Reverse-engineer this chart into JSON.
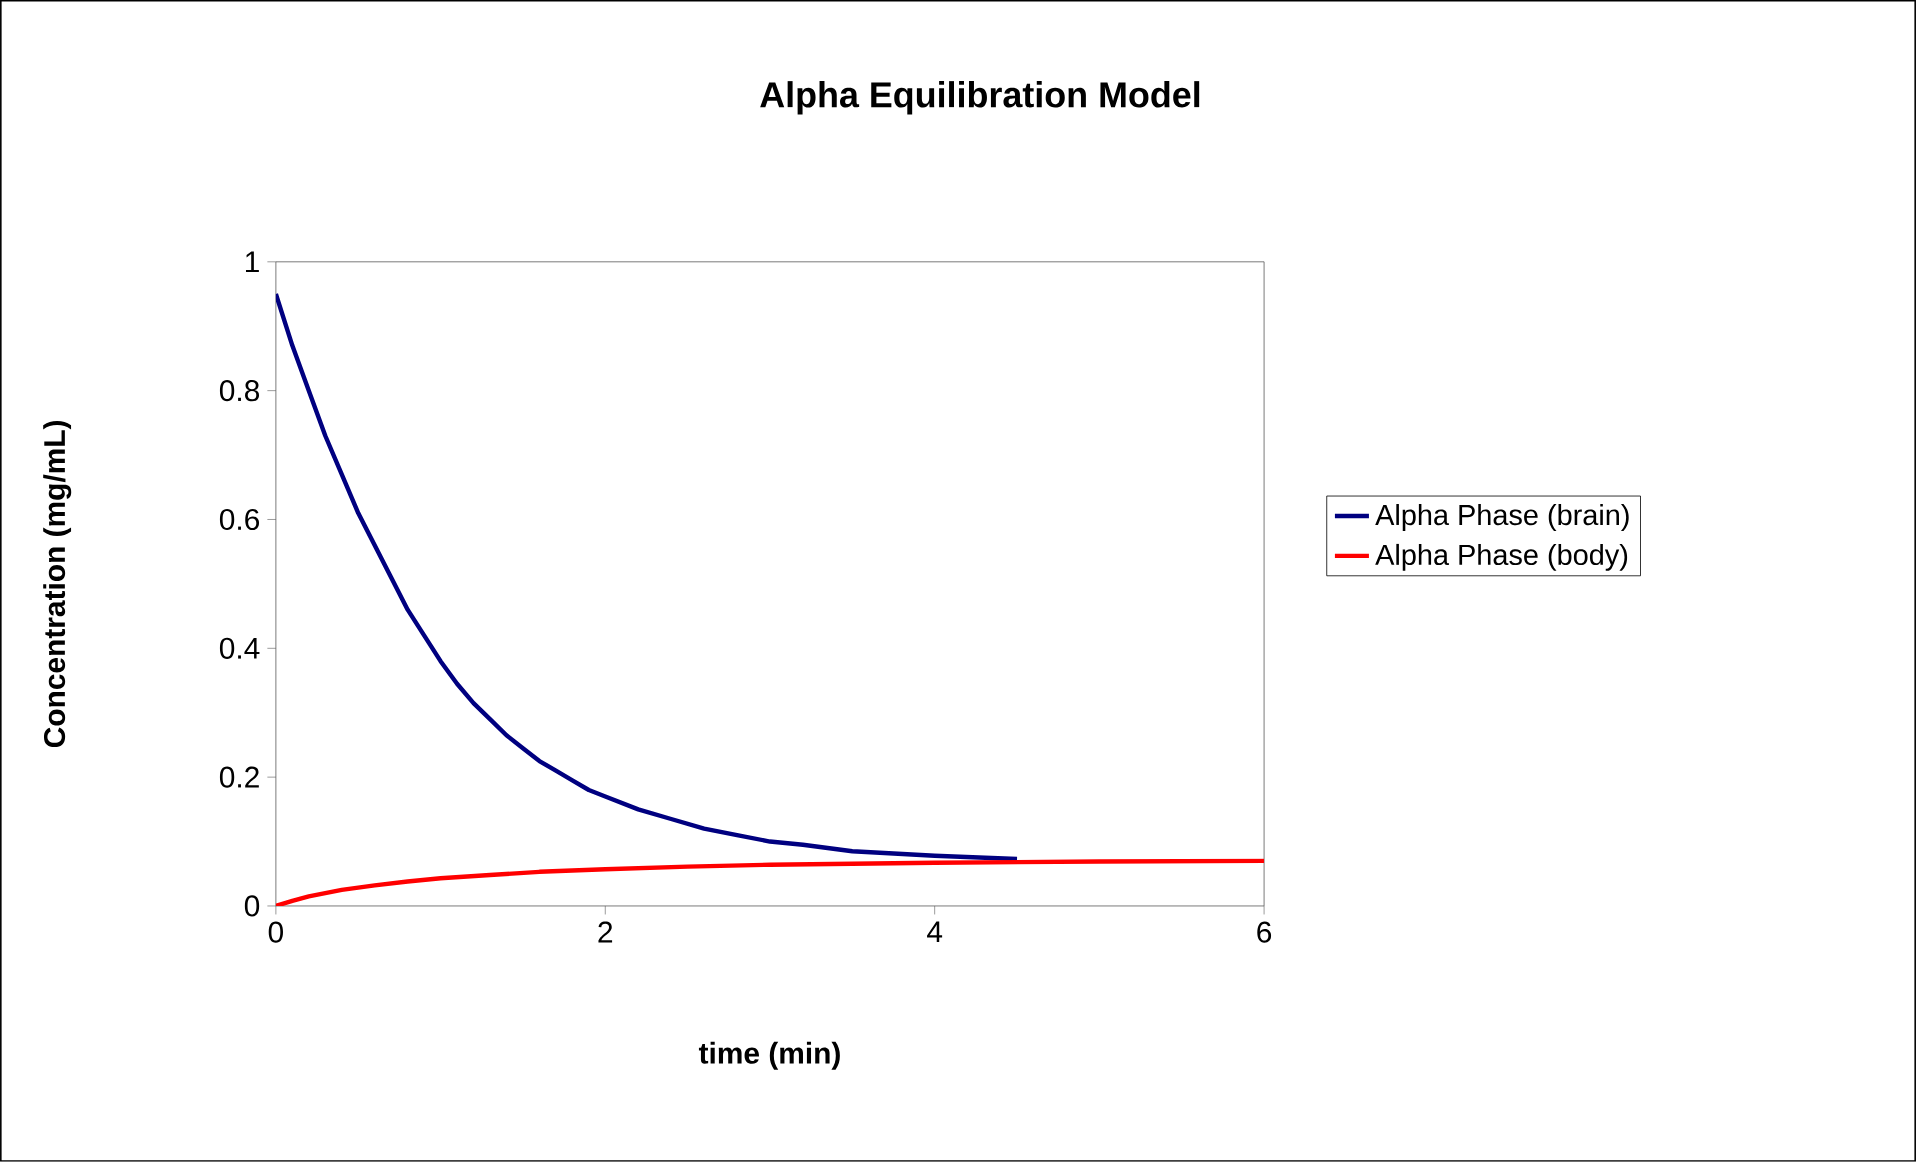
{
  "chart_data": {
    "type": "line",
    "title": "Alpha Equilibration Model",
    "xlabel": "time (min)",
    "ylabel": "Concentration (mg/mL)",
    "xlim": [
      0,
      6
    ],
    "ylim": [
      0,
      1
    ],
    "xticks": [
      0,
      2,
      4,
      6
    ],
    "yticks": [
      0,
      0.2,
      0.4,
      0.6,
      0.8,
      1
    ],
    "grid": false,
    "legend": "right",
    "marker": "none",
    "line_style": "solid",
    "series": [
      {
        "name": "Alpha Phase (brain)",
        "color": "#000080",
        "x": [
          0,
          0.1,
          0.2,
          0.3,
          0.4,
          0.5,
          0.6,
          0.7,
          0.8,
          0.9,
          1.0,
          1.1,
          1.2,
          1.3,
          1.4,
          1.5,
          1.6,
          1.7,
          1.8,
          1.9,
          2.0,
          2.2,
          2.4,
          2.6,
          2.8,
          3.0,
          3.2,
          3.5,
          4.0,
          4.5
        ],
        "values": [
          0.95,
          0.87,
          0.8,
          0.73,
          0.67,
          0.61,
          0.56,
          0.51,
          0.46,
          0.42,
          0.38,
          0.345,
          0.315,
          0.29,
          0.265,
          0.245,
          0.225,
          0.21,
          0.195,
          0.18,
          0.17,
          0.15,
          0.135,
          0.12,
          0.11,
          0.1,
          0.095,
          0.085,
          0.078,
          0.073
        ]
      },
      {
        "name": "Alpha Phase (body)",
        "color": "#ff0000",
        "x": [
          0,
          0.1,
          0.2,
          0.4,
          0.6,
          0.8,
          1.0,
          1.3,
          1.6,
          2.0,
          2.5,
          3.0,
          4.0,
          5.0,
          6.0
        ],
        "values": [
          0,
          0.008,
          0.015,
          0.025,
          0.032,
          0.038,
          0.043,
          0.048,
          0.053,
          0.057,
          0.061,
          0.064,
          0.067,
          0.069,
          0.07
        ]
      }
    ]
  }
}
